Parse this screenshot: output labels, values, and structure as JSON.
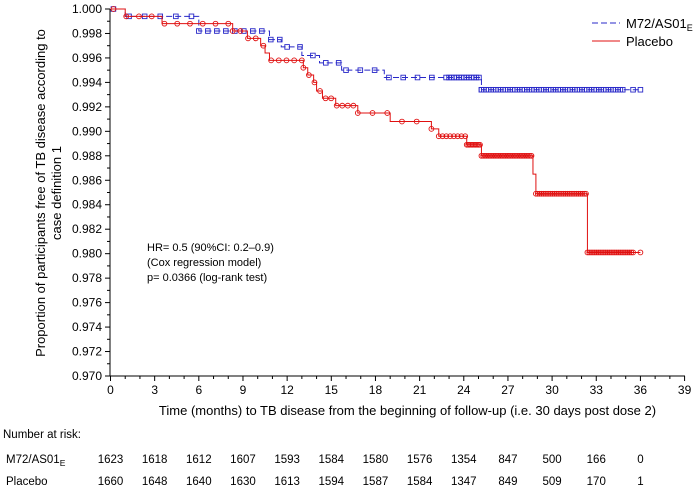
{
  "chart_data": {
    "type": "line",
    "subtype": "kaplan-meier",
    "xlabel": "Time (months) to TB disease from the beginning of follow-up (i.e. 30 days post dose 2)",
    "ylabel_line1": "Proportion of participants free of TB disease according to",
    "ylabel_line2": "case definition 1",
    "xlim": [
      0,
      39
    ],
    "ylim": [
      0.97,
      1.0
    ],
    "x_ticks": [
      "0",
      "3",
      "6",
      "9",
      "12",
      "15",
      "18",
      "21",
      "24",
      "27",
      "30",
      "33",
      "36",
      "39"
    ],
    "y_ticks": [
      "0.970",
      "0.972",
      "0.974",
      "0.976",
      "0.978",
      "0.980",
      "0.982",
      "0.984",
      "0.986",
      "0.988",
      "0.990",
      "0.992",
      "0.994",
      "0.996",
      "0.998",
      "1.000"
    ],
    "legend": {
      "position": "top-right",
      "entries": [
        {
          "name": "M72/AS01",
          "sub": "E",
          "style": "dashed",
          "color": "#2828c8"
        },
        {
          "name": "Placebo",
          "sub": "",
          "style": "solid",
          "color": "#e01010"
        }
      ]
    },
    "annotation": [
      "HR= 0.5 (90%CI: 0.2–0.9)",
      "(Cox regression model)",
      "p= 0.0366 (log-rank test)"
    ],
    "series": [
      {
        "name": "M72/AS01E",
        "color": "#2828c8",
        "steps": [
          [
            0,
            1.0
          ],
          [
            1.0,
            0.9994
          ],
          [
            4.5,
            0.9994
          ],
          [
            6.0,
            0.9982
          ],
          [
            8.6,
            0.9982
          ],
          [
            10.8,
            0.9975
          ],
          [
            11.6,
            0.9969
          ],
          [
            13.0,
            0.9962
          ],
          [
            14.2,
            0.9956
          ],
          [
            15.7,
            0.995
          ],
          [
            18.6,
            0.9944
          ],
          [
            23.0,
            0.9944
          ],
          [
            25.2,
            0.9934
          ],
          [
            36.0,
            0.9934
          ]
        ],
        "censor_ranges": [
          [
            0.2,
            5.5,
            6
          ],
          [
            6.0,
            11.5,
            10
          ],
          [
            12.0,
            15.5,
            5
          ],
          [
            16.0,
            22.8,
            8
          ],
          [
            23.0,
            25.2,
            14
          ],
          [
            25.2,
            34.8,
            60
          ],
          [
            35.5,
            36.0,
            2
          ]
        ]
      },
      {
        "name": "Placebo",
        "color": "#e01010",
        "steps": [
          [
            0,
            1.0
          ],
          [
            1.0,
            0.9994
          ],
          [
            3.5,
            0.9988
          ],
          [
            8.3,
            0.9982
          ],
          [
            9.3,
            0.9976
          ],
          [
            10.2,
            0.997
          ],
          [
            10.5,
            0.9964
          ],
          [
            10.8,
            0.9958
          ],
          [
            13.1,
            0.9952
          ],
          [
            13.4,
            0.9946
          ],
          [
            13.8,
            0.994
          ],
          [
            14.0,
            0.9933
          ],
          [
            14.4,
            0.9927
          ],
          [
            15.3,
            0.9921
          ],
          [
            16.8,
            0.9915
          ],
          [
            19.0,
            0.9908
          ],
          [
            21.8,
            0.9902
          ],
          [
            22.3,
            0.9896
          ],
          [
            24.2,
            0.9889
          ],
          [
            25.2,
            0.988
          ],
          [
            28.7,
            0.9865
          ],
          [
            28.9,
            0.9849
          ],
          [
            32.4,
            0.9801
          ],
          [
            36.0,
            0.9801
          ]
        ],
        "censor_ranges": [
          [
            0.2,
            8.0,
            10
          ],
          [
            8.3,
            13.0,
            10
          ],
          [
            13.1,
            16.5,
            10
          ],
          [
            16.8,
            21.8,
            6
          ],
          [
            22.3,
            24.1,
            8
          ],
          [
            24.2,
            25.1,
            10
          ],
          [
            25.2,
            28.6,
            30
          ],
          [
            28.9,
            32.3,
            28
          ],
          [
            32.4,
            35.5,
            26
          ],
          [
            36.0,
            36.0,
            1
          ]
        ]
      }
    ]
  },
  "risk_table": {
    "title": "Number at risk:",
    "times": [
      0,
      3,
      6,
      9,
      12,
      15,
      18,
      21,
      24,
      27,
      30,
      33,
      36
    ],
    "rows": [
      {
        "name": "M72/AS01",
        "sub": "E",
        "values": [
          "1623",
          "1618",
          "1612",
          "1607",
          "1593",
          "1584",
          "1580",
          "1576",
          "1354",
          "847",
          "500",
          "166",
          "0"
        ]
      },
      {
        "name": "Placebo",
        "sub": "",
        "values": [
          "1660",
          "1648",
          "1640",
          "1630",
          "1613",
          "1594",
          "1587",
          "1584",
          "1347",
          "849",
          "509",
          "170",
          "1"
        ]
      }
    ]
  }
}
